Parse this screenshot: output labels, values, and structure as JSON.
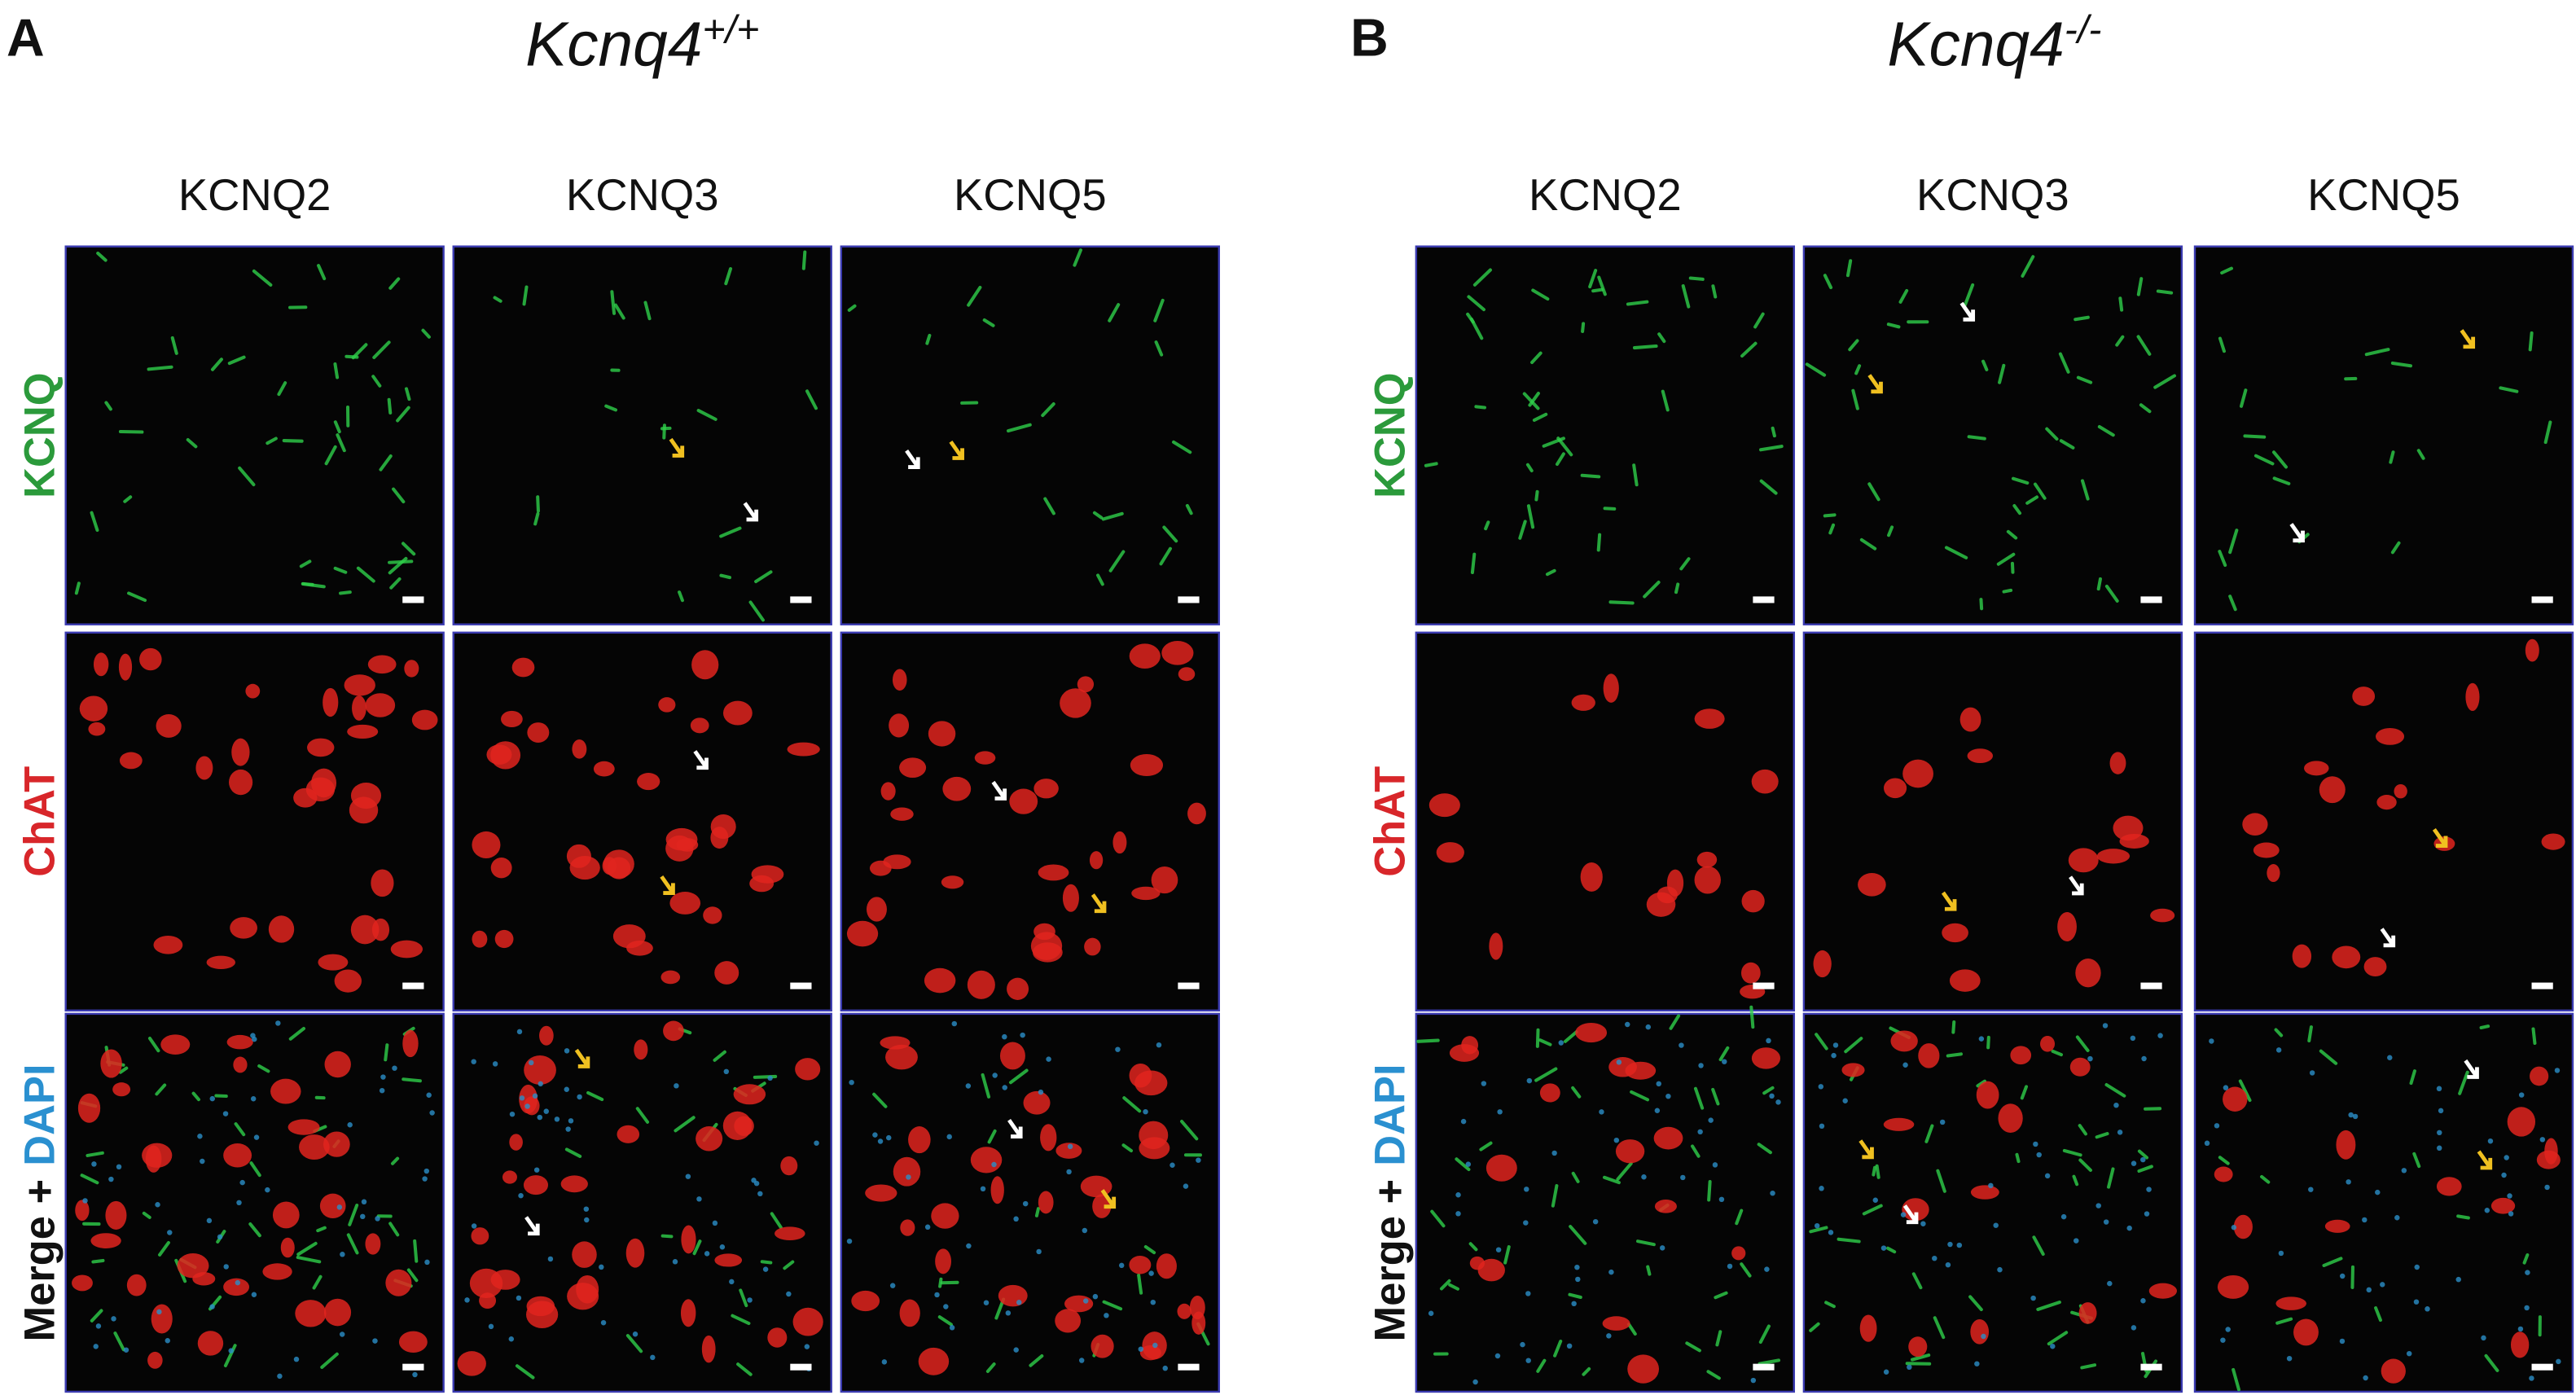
{
  "panels": [
    {
      "label": "A",
      "genotype": {
        "base": "Kcnq4",
        "sup": "+/+"
      },
      "columns": [
        "KCNQ2",
        "KCNQ3",
        "KCNQ5"
      ]
    },
    {
      "label": "B",
      "genotype": {
        "base": "Kcnq4",
        "sup": "-/-"
      },
      "columns": [
        "KCNQ2",
        "KCNQ3",
        "KCNQ5"
      ]
    }
  ],
  "rows": [
    {
      "parts": [
        "KCNQ"
      ]
    },
    {
      "parts": [
        "ChAT"
      ]
    },
    {
      "parts": [
        "Merge +",
        "DAPI"
      ]
    }
  ]
}
